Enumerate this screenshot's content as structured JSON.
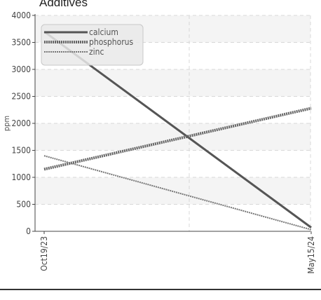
{
  "chart_data": {
    "type": "line",
    "title": "Additives",
    "xlabel": "",
    "ylabel": "ppm",
    "x": [
      "Oct19/23",
      "May15/24"
    ],
    "ylim": [
      0,
      4000
    ],
    "yticks": [
      0,
      500,
      1000,
      1500,
      2000,
      2500,
      3000,
      3500,
      4000
    ],
    "grid": true,
    "legend_position": "top-left",
    "series": [
      {
        "name": "calcium",
        "values": [
          3700,
          70
        ],
        "color": "#555555",
        "style": "solid"
      },
      {
        "name": "phosphorus",
        "values": [
          1150,
          2280
        ],
        "color": "#666666",
        "style": "dotted-thick"
      },
      {
        "name": "zinc",
        "values": [
          1400,
          30
        ],
        "color": "#777777",
        "style": "dotted-thin"
      }
    ]
  }
}
